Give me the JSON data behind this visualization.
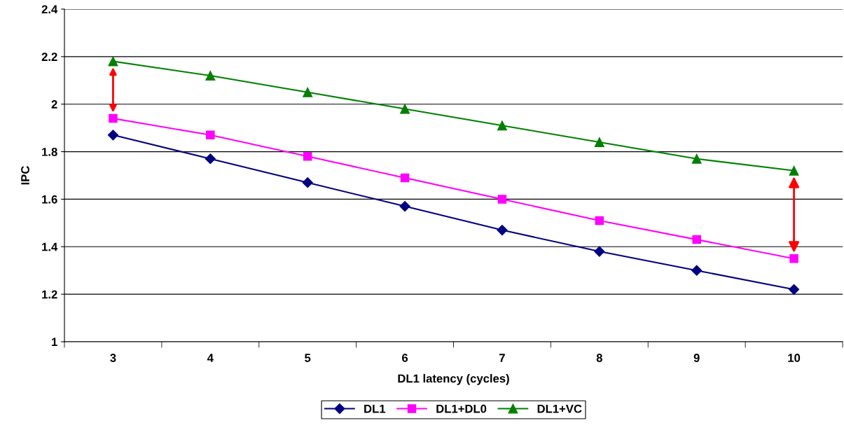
{
  "chart_data": {
    "type": "line",
    "xlabel": "DL1 latency (cycles)",
    "ylabel": "IPC",
    "categories": [
      "3",
      "4",
      "5",
      "6",
      "7",
      "8",
      "9",
      "10"
    ],
    "series": [
      {
        "name": "DL1",
        "color": "#000080",
        "marker": "diamond",
        "values": [
          1.87,
          1.77,
          1.67,
          1.57,
          1.47,
          1.38,
          1.3,
          1.22
        ]
      },
      {
        "name": "DL1+DL0",
        "color": "#ff00ff",
        "marker": "square",
        "values": [
          1.94,
          1.87,
          1.78,
          1.69,
          1.6,
          1.51,
          1.43,
          1.35
        ]
      },
      {
        "name": "DL1+VC",
        "color": "#008000",
        "marker": "triangle",
        "values": [
          2.18,
          2.12,
          2.05,
          1.98,
          1.91,
          1.84,
          1.77,
          1.72
        ]
      }
    ],
    "ylim": [
      1,
      2.4
    ],
    "yticks": [
      1,
      1.2,
      1.4,
      1.6,
      1.8,
      2,
      2.2,
      2.4
    ],
    "grid": "y",
    "legend": "bottom",
    "line_style": "solid"
  }
}
